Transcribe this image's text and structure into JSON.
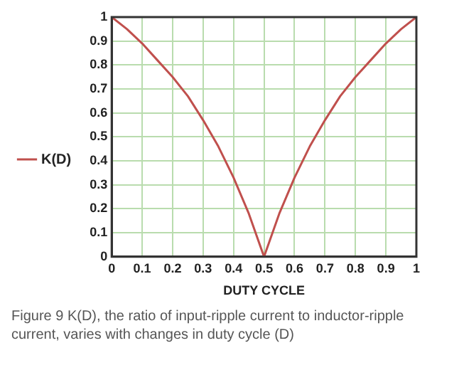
{
  "chart_data": {
    "type": "line",
    "xlabel": "DUTY CYCLE",
    "x": [
      0,
      0.05,
      0.1,
      0.15,
      0.2,
      0.25,
      0.3,
      0.35,
      0.4,
      0.45,
      0.5,
      0.55,
      0.6,
      0.65,
      0.7,
      0.75,
      0.8,
      0.85,
      0.9,
      0.95,
      1
    ],
    "series": [
      {
        "name": "K(D)",
        "color": "#c0504d",
        "values": [
          1,
          0.95,
          0.89,
          0.82,
          0.75,
          0.67,
          0.57,
          0.46,
          0.33,
          0.18,
          0,
          0.18,
          0.33,
          0.46,
          0.57,
          0.67,
          0.75,
          0.82,
          0.89,
          0.95,
          1
        ]
      }
    ],
    "xlim": [
      0,
      1
    ],
    "xticks": [
      0,
      0.1,
      0.2,
      0.3,
      0.4,
      0.5,
      0.6,
      0.7,
      0.8,
      0.9,
      1
    ],
    "ylim": [
      0,
      1
    ],
    "yticks": [
      0,
      0.1,
      0.2,
      0.3,
      0.4,
      0.5,
      0.6,
      0.7,
      0.8,
      0.9,
      1
    ],
    "grid": true,
    "legend": "left",
    "marker": "none",
    "line_style": "solid",
    "annotations": [
      "Figure 9 K(D), the ratio of input-ripple current to inductor-ripple current, varies with changes in duty cycle (D)"
    ]
  }
}
